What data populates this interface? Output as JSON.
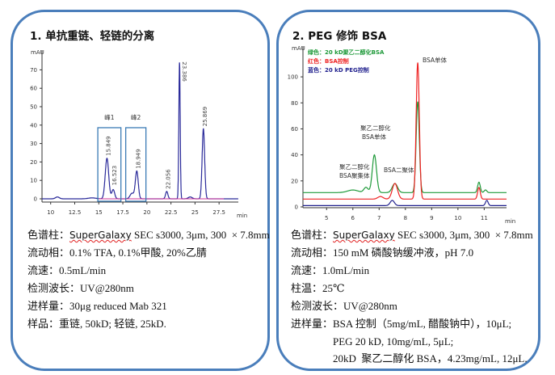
{
  "left": {
    "title": "1.   单抗重链、轻链的分离",
    "lines": [
      {
        "label": "色谱柱：",
        "value": "SuperGalaxy SEC s3000, 3μm, 300  × 7.8mm"
      },
      {
        "label": "流动相：",
        "value": "0.1% TFA, 0.1%甲酸, 20%乙腈"
      },
      {
        "label": "流速：",
        "value": "0.5mL/min"
      },
      {
        "label": "检测波长：",
        "value": "UV@280nm"
      },
      {
        "label": "进样量：",
        "value": "30μg reduced Mab 321"
      },
      {
        "label": "样品：",
        "value": "重链, 50kD; 轻链, 25kD. "
      }
    ]
  },
  "right": {
    "title": "2.   PEG 修饰 BSA",
    "lines": [
      {
        "label": "色谱柱：",
        "value": "SuperGalaxy SEC s3000, 3μm, 300  × 7.8mm"
      },
      {
        "label": "流动相：",
        "value": "150 mM 磷酸钠缓冲液，pH 7.0"
      },
      {
        "label": "流速：",
        "value": "1.0mL/min"
      },
      {
        "label": "柱温：",
        "value": "25℃"
      },
      {
        "label": "检测波长：",
        "value": "UV@280nm"
      },
      {
        "label": "进样量：",
        "value": "BSA 控制（5mg/mL, 醋酸钠中），10μL;"
      },
      {
        "label": "",
        "value": "PEG 20 kD, 10mg/mL, 5μL; "
      },
      {
        "label": "",
        "value": "20kD  聚乙二醇化 BSA，4.23mg/mL, 12μL."
      }
    ]
  },
  "chart_data": [
    {
      "type": "line",
      "ylabel": "mAU",
      "xlabel": "min",
      "xlim": [
        9.1,
        29.5
      ],
      "ylim": [
        0,
        75
      ],
      "xticks": [
        "10",
        "12.5",
        "15",
        "17.5",
        "20",
        "22.5",
        "25",
        "27.5"
      ],
      "yticks": [
        "0",
        "10",
        "20",
        "30",
        "40",
        "50",
        "60",
        "70"
      ],
      "color": "#2a2a9a",
      "series": [
        {
          "baseline": 0,
          "peaks": [
            [
              10.7,
              1,
              0.2
            ],
            [
              14.3,
              0.5,
              0.4
            ],
            [
              15.85,
              22,
              0.18
            ],
            [
              16.5,
              5,
              0.15
            ],
            [
              18.45,
              3,
              0.2
            ],
            [
              18.95,
              15,
              0.15
            ],
            [
              22.06,
              4,
              0.12
            ],
            [
              23.39,
              74,
              0.07
            ],
            [
              24.5,
              1,
              0.2
            ],
            [
              25.87,
              38,
              0.13
            ]
          ]
        }
      ],
      "peak_labels": [
        "15.849",
        "16.523",
        "18.949",
        "22.056",
        "23.386",
        "25.869"
      ],
      "boxes": [
        {
          "label": "峰1",
          "x": [
            14.9,
            17.3
          ]
        },
        {
          "label": "峰2",
          "x": [
            17.8,
            19.9
          ]
        }
      ],
      "box_color": "#3b7bb5"
    },
    {
      "type": "line",
      "ylabel": "mAU",
      "xlabel": "min",
      "xlim": [
        4.1,
        11.85
      ],
      "ylim": [
        0,
        110
      ],
      "xticks": [
        "5",
        "6",
        "7",
        "8",
        "9",
        "10",
        "11"
      ],
      "yticks": [
        "0",
        "20",
        "40",
        "60",
        "80",
        "100"
      ],
      "legend": [
        {
          "text": "绿色：20 kD聚乙二醇化BSA",
          "color": "#1f9a3a"
        },
        {
          "text": "红色：BSA控制",
          "color": "#ee2222"
        },
        {
          "text": "蓝色：20 kD PEG控制",
          "color": "#23238f"
        }
      ],
      "series": [
        {
          "color": "#1f9a3a",
          "baseline": 11,
          "peaks": [
            [
              6.0,
              2,
              0.2
            ],
            [
              6.5,
              4,
              0.08
            ],
            [
              6.82,
              29,
              0.08
            ],
            [
              7.6,
              7,
              0.1
            ],
            [
              8.47,
              70,
              0.06
            ],
            [
              10.8,
              8,
              0.05
            ],
            [
              11.05,
              2,
              0.05
            ]
          ]
        },
        {
          "color": "#ee2222",
          "baseline": 6,
          "peaks": [
            [
              7.05,
              2,
              0.1
            ],
            [
              7.6,
              12,
              0.1
            ],
            [
              8.47,
              105,
              0.06
            ],
            [
              10.8,
              9,
              0.05
            ]
          ]
        },
        {
          "color": "#23238f",
          "baseline": 1,
          "peaks": [
            [
              7.5,
              4,
              0.08
            ],
            [
              11.1,
              4,
              0.05
            ]
          ]
        }
      ],
      "annotations": [
        "BSA单体",
        "聚乙二醇化",
        "BSA单体",
        "聚乙二醇化",
        "BSA聚集体",
        "BSA二聚体"
      ]
    }
  ]
}
